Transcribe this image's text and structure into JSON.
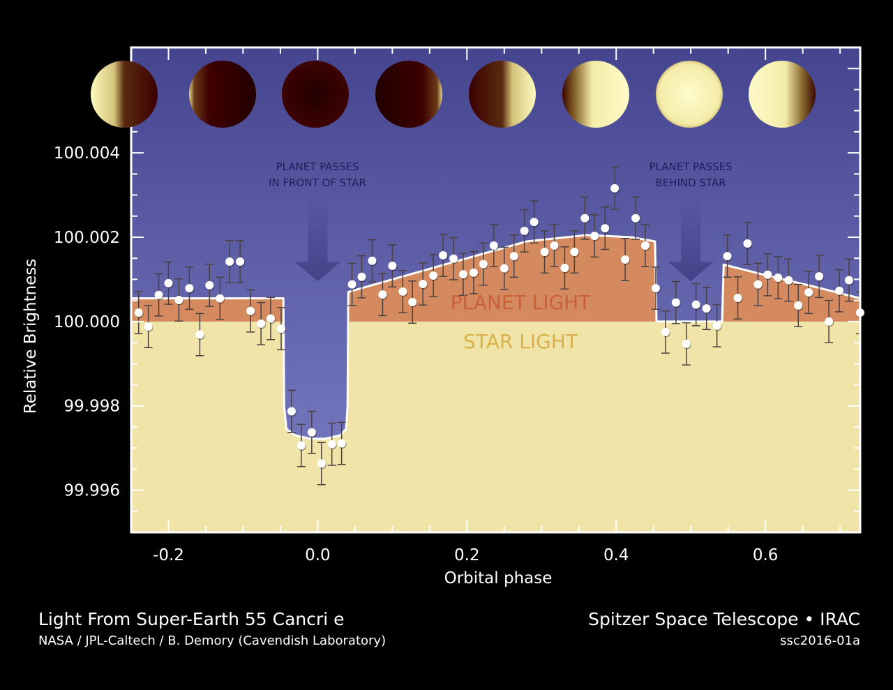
{
  "chart_data": {
    "type": "scatter",
    "title": "Light From Super-Earth 55 Cancri e",
    "xlabel": "Orbital phase",
    "ylabel": "Relative Brightness",
    "xlim": [
      -0.25,
      0.727
    ],
    "ylim": [
      99.995,
      100.0065
    ],
    "x_ticks": [
      -0.2,
      0.0,
      0.2,
      0.4,
      0.6
    ],
    "x_tick_labels": [
      "-0.2",
      "0.0",
      "0.2",
      "0.4",
      "0.6"
    ],
    "y_ticks": [
      99.996,
      99.998,
      100.0,
      100.002,
      100.004
    ],
    "y_tick_labels": [
      "99.996",
      "99.998",
      "100.000",
      "100.002",
      "100.004"
    ],
    "grid": false,
    "region_labels": {
      "planet_light": "PLANET LIGHT",
      "star_light": "STAR LIGHT"
    },
    "annotations": [
      {
        "line1": "PLANET PASSES",
        "line2": "IN FRONT OF STAR",
        "x": 0.0
      },
      {
        "line1": "PLANET PASSES",
        "line2": "BEHIND STAR",
        "x": 0.5
      }
    ],
    "error": 0.0005,
    "points": [
      [
        -0.24,
        100.00021
      ],
      [
        -0.227,
        99.99988
      ],
      [
        -0.213,
        100.00063
      ],
      [
        -0.2,
        100.00091
      ],
      [
        -0.186,
        100.00051
      ],
      [
        -0.172,
        100.00079
      ],
      [
        -0.158,
        99.99969
      ],
      [
        -0.145,
        100.00086
      ],
      [
        -0.131,
        100.00055
      ],
      [
        -0.118,
        100.00142
      ],
      [
        -0.104,
        100.00142
      ],
      [
        -0.09,
        100.00025
      ],
      [
        -0.076,
        99.99995
      ],
      [
        -0.063,
        100.00007
      ],
      [
        -0.049,
        99.99983
      ],
      [
        -0.035,
        99.99787
      ],
      [
        -0.022,
        99.99706
      ],
      [
        -0.008,
        99.99737
      ],
      [
        0.005,
        99.99663
      ],
      [
        0.019,
        99.99709
      ],
      [
        0.032,
        99.99711
      ],
      [
        0.046,
        100.00088
      ],
      [
        0.059,
        100.00106
      ],
      [
        0.073,
        100.00144
      ],
      [
        0.087,
        100.00064
      ],
      [
        0.1,
        100.00132
      ],
      [
        0.114,
        100.00071
      ],
      [
        0.127,
        100.00046
      ],
      [
        0.141,
        100.00089
      ],
      [
        0.155,
        100.00109
      ],
      [
        0.168,
        100.00157
      ],
      [
        0.182,
        100.00149
      ],
      [
        0.195,
        100.00112
      ],
      [
        0.209,
        100.00116
      ],
      [
        0.222,
        100.00136
      ],
      [
        0.236,
        100.0018
      ],
      [
        0.25,
        100.00126
      ],
      [
        0.263,
        100.00155
      ],
      [
        0.277,
        100.00215
      ],
      [
        0.29,
        100.00236
      ],
      [
        0.304,
        100.00165
      ],
      [
        0.317,
        100.0018
      ],
      [
        0.331,
        100.00127
      ],
      [
        0.344,
        100.00165
      ],
      [
        0.358,
        100.00245
      ],
      [
        0.371,
        100.00203
      ],
      [
        0.385,
        100.00221
      ],
      [
        0.398,
        100.00316
      ],
      [
        0.412,
        100.00147
      ],
      [
        0.426,
        100.00245
      ],
      [
        0.439,
        100.0018
      ],
      [
        0.453,
        100.00079
      ],
      [
        0.466,
        99.99975
      ],
      [
        0.48,
        100.00045
      ],
      [
        0.494,
        99.99947
      ],
      [
        0.507,
        100.0004
      ],
      [
        0.521,
        100.00031
      ],
      [
        0.535,
        99.9999
      ],
      [
        0.549,
        100.00155
      ],
      [
        0.563,
        100.00056
      ],
      [
        0.576,
        100.00185
      ],
      [
        0.59,
        100.00088
      ],
      [
        0.603,
        100.00111
      ],
      [
        0.617,
        100.00104
      ],
      [
        0.631,
        100.00098
      ],
      [
        0.644,
        100.00038
      ],
      [
        0.658,
        100.00069
      ],
      [
        0.672,
        100.00107
      ],
      [
        0.685,
        100.0
      ],
      [
        0.699,
        100.00073
      ],
      [
        0.712,
        100.00098
      ],
      [
        0.727,
        100.00021
      ]
    ],
    "model": [
      [
        -0.25,
        100.00055
      ],
      [
        -0.046,
        100.00055
      ],
      [
        -0.045,
        99.998
      ],
      [
        -0.042,
        99.99745
      ],
      [
        -0.03,
        99.9973
      ],
      [
        -0.01,
        99.99722
      ],
      [
        0.01,
        99.99722
      ],
      [
        0.03,
        99.9973
      ],
      [
        0.038,
        99.99745
      ],
      [
        0.04,
        99.998
      ],
      [
        0.041,
        100.0007
      ],
      [
        0.1,
        100.001
      ],
      [
        0.2,
        100.0015
      ],
      [
        0.28,
        100.0019
      ],
      [
        0.36,
        100.00205
      ],
      [
        0.42,
        100.002
      ],
      [
        0.452,
        100.0019
      ],
      [
        0.454,
        100.0
      ],
      [
        0.542,
        100.0
      ],
      [
        0.544,
        100.00135
      ],
      [
        0.6,
        100.0011
      ],
      [
        0.66,
        100.00085
      ],
      [
        0.727,
        100.00055
      ]
    ],
    "planet_phases": [
      "first-quarter-left",
      "crescent-left",
      "new",
      "crescent-right",
      "half-right",
      "gibbous-left-dark",
      "full",
      "gibbous-right-dark"
    ]
  },
  "caption": {
    "title": "Light From Super-Earth 55 Cancri e",
    "credit": "NASA / JPL-Caltech / B. Demory (Cavendish Laboratory)",
    "instrument": "Spitzer Space Telescope • IRAC",
    "id": "ssc2016-01a"
  },
  "colors": {
    "sky_top": "#45458f",
    "sky_bottom": "#7d80c6",
    "planet_light": "#d48a5e",
    "star_light": "#f0e4a8",
    "planet_label": "#c9603a",
    "star_label": "#d8b04c"
  }
}
